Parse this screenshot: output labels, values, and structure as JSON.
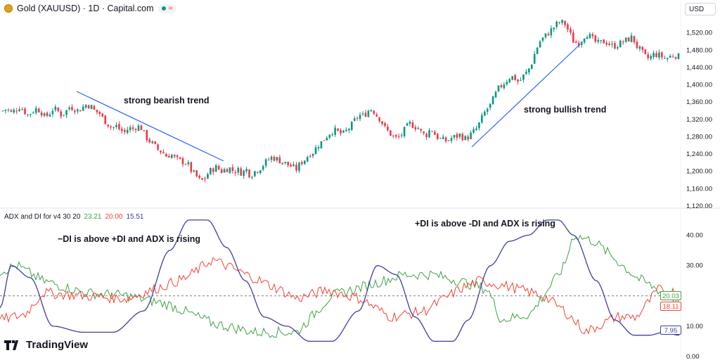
{
  "header": {
    "symbol_line": "Gold (XAUUSD) · 1D · Capital.com",
    "currency": "USD"
  },
  "indicator": {
    "name": "ADX and DI for v4 30 20",
    "plus_di": "23.21",
    "minus_di": "20.00",
    "adx": "15.51"
  },
  "annotations": {
    "bearish": "strong bearish trend",
    "bullish": "strong bullish trend",
    "minus_above": "−DI is above +DI and ADX is rising",
    "plus_above": "+DI is above -DI and ADX is rising"
  },
  "value_tags": {
    "plus_di": "20.03",
    "minus_di": "18.11",
    "adx": "7.95"
  },
  "brand": "TradingView",
  "colors": {
    "up": "#089981",
    "down": "#f23645",
    "plus_di": "#43a047",
    "minus_di": "#f44336",
    "adx": "#3f3f9f",
    "trendline": "#2962ff",
    "threshold": "#787b86"
  },
  "chart_data": [
    {
      "type": "candlestick",
      "title": "Gold (XAUUSD) · 1D · Capital.com",
      "ylim": [
        1120,
        1560
      ],
      "y_ticks": [
        "1,520.00",
        "1,480.00",
        "1,440.00",
        "1,400.00",
        "1,360.00",
        "1,320.00",
        "1,280.00",
        "1,240.00",
        "1,200.00",
        "1,160.00",
        "1,120.00"
      ],
      "close_path": [
        1340,
        1345,
        1335,
        1342,
        1350,
        1340,
        1330,
        1338,
        1345,
        1340,
        1325,
        1332,
        1345,
        1340,
        1330,
        1338,
        1350,
        1345,
        1340,
        1348,
        1355,
        1350,
        1338,
        1335,
        1320,
        1310,
        1300,
        1305,
        1295,
        1290,
        1300,
        1298,
        1305,
        1300,
        1280,
        1270,
        1260,
        1250,
        1245,
        1235,
        1240,
        1230,
        1225,
        1222,
        1218,
        1200,
        1190,
        1178,
        1180,
        1198,
        1205,
        1210,
        1200,
        1205,
        1208,
        1200,
        1203,
        1196,
        1205,
        1190,
        1200,
        1205,
        1215,
        1225,
        1232,
        1230,
        1225,
        1220,
        1215,
        1210,
        1205,
        1220,
        1228,
        1240,
        1245,
        1260,
        1268,
        1280,
        1290,
        1295,
        1290,
        1285,
        1295,
        1305,
        1320,
        1330,
        1328,
        1340,
        1345,
        1330,
        1320,
        1300,
        1290,
        1280,
        1275,
        1285,
        1300,
        1310,
        1305,
        1300,
        1285,
        1285,
        1300,
        1285,
        1275,
        1272,
        1270,
        1278,
        1280,
        1285,
        1275,
        1280,
        1290,
        1300,
        1320,
        1340,
        1350,
        1370,
        1390,
        1400,
        1410,
        1420,
        1415,
        1405,
        1420,
        1430,
        1450,
        1480,
        1500,
        1510,
        1520,
        1530,
        1540,
        1545,
        1540,
        1520,
        1500,
        1495,
        1505,
        1520,
        1510,
        1500,
        1495,
        1500,
        1498,
        1490,
        1490,
        1495,
        1500,
        1505,
        1510,
        1490,
        1478,
        1465,
        1460,
        1470,
        1470,
        1465,
        1460,
        1465,
        1470,
        1465
      ]
    },
    {
      "type": "line",
      "title": "ADX and DI for v4 30 20",
      "ylim": [
        0,
        48
      ],
      "y_ticks": [
        "40.00",
        "30.00",
        "10.00",
        "0.00"
      ],
      "threshold": 20,
      "x_count": 160,
      "series": [
        {
          "name": "+DI",
          "color": "#43a047",
          "end_value": 20.03,
          "keyframes": [
            [
              0,
              28
            ],
            [
              4,
              30
            ],
            [
              10,
              25
            ],
            [
              20,
              21
            ],
            [
              30,
              20
            ],
            [
              40,
              17
            ],
            [
              50,
              11
            ],
            [
              60,
              8
            ],
            [
              70,
              8
            ],
            [
              78,
              20
            ],
            [
              88,
              24
            ],
            [
              95,
              27
            ],
            [
              102,
              27
            ],
            [
              108,
              25
            ],
            [
              115,
              22
            ],
            [
              118,
              12
            ],
            [
              125,
              14
            ],
            [
              133,
              30
            ],
            [
              135,
              40
            ],
            [
              140,
              38
            ],
            [
              145,
              32
            ],
            [
              150,
              26
            ],
            [
              160,
              18
            ]
          ]
        },
        {
          "name": "-DI",
          "color": "#f44336",
          "end_value": 18.11,
          "keyframes": [
            [
              0,
              12
            ],
            [
              6,
              14
            ],
            [
              10,
              21
            ],
            [
              20,
              20
            ],
            [
              30,
              19
            ],
            [
              38,
              23
            ],
            [
              44,
              26
            ],
            [
              50,
              32
            ],
            [
              58,
              27
            ],
            [
              66,
              22
            ],
            [
              70,
              19
            ],
            [
              77,
              22
            ],
            [
              85,
              19
            ],
            [
              92,
              13
            ],
            [
              100,
              15
            ],
            [
              108,
              22
            ],
            [
              113,
              25
            ],
            [
              120,
              23
            ],
            [
              128,
              20
            ],
            [
              133,
              15
            ],
            [
              138,
              8
            ],
            [
              145,
              13
            ],
            [
              150,
              13
            ],
            [
              155,
              22
            ],
            [
              160,
              21
            ]
          ]
        },
        {
          "name": "ADX",
          "color": "#3f3f9f",
          "end_value": 7.95,
          "keyframes": [
            [
              0,
              16
            ],
            [
              3,
              30
            ],
            [
              8,
              26
            ],
            [
              14,
              10
            ],
            [
              22,
              8
            ],
            [
              30,
              8
            ],
            [
              38,
              15
            ],
            [
              45,
              35
            ],
            [
              50,
              45
            ],
            [
              55,
              45
            ],
            [
              60,
              36
            ],
            [
              65,
              25
            ],
            [
              70,
              13
            ],
            [
              76,
              10
            ],
            [
              82,
              5
            ],
            [
              88,
              5
            ],
            [
              95,
              15
            ],
            [
              100,
              30
            ],
            [
              105,
              27
            ],
            [
              110,
              13
            ],
            [
              115,
              5
            ],
            [
              120,
              5
            ],
            [
              124,
              12
            ],
            [
              130,
              30
            ],
            [
              135,
              38
            ],
            [
              140,
              40
            ],
            [
              145,
              45
            ],
            [
              148,
              45
            ],
            [
              152,
              40
            ],
            [
              158,
              25
            ],
            [
              163,
              12
            ],
            [
              168,
              7
            ],
            [
              172,
              7
            ],
            [
              176,
              8
            ],
            [
              180,
              7
            ]
          ]
        }
      ]
    }
  ]
}
